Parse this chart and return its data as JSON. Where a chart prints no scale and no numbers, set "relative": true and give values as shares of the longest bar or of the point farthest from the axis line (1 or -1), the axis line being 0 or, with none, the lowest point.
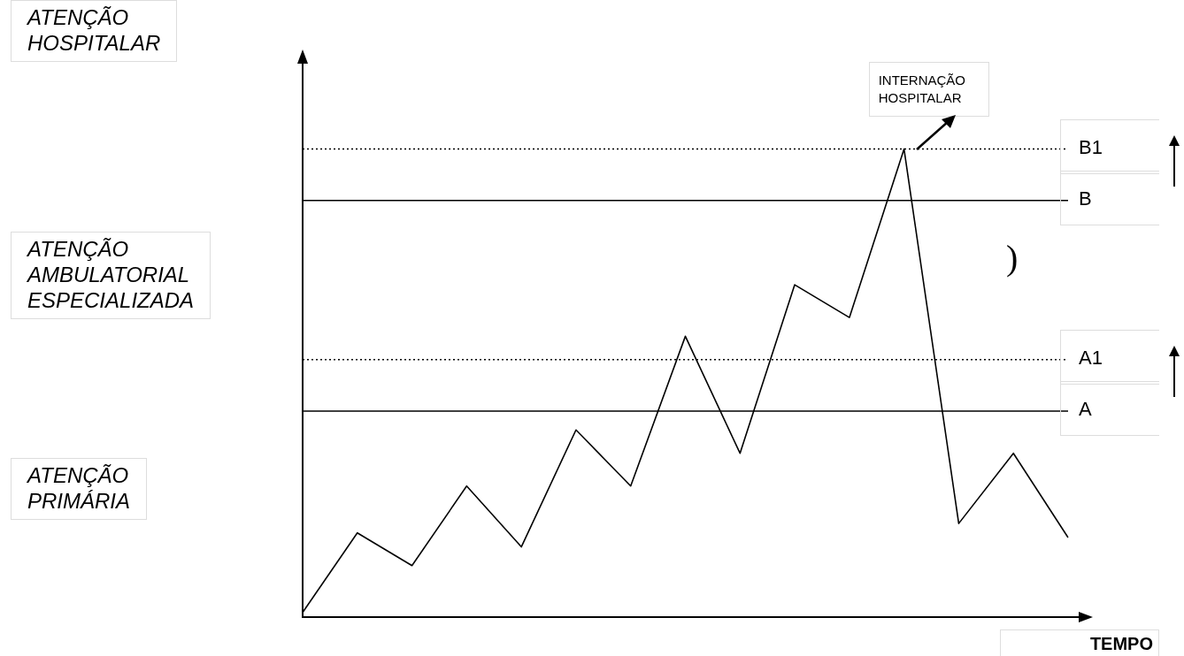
{
  "chart_data": {
    "type": "line",
    "relative": true,
    "xlabel": "TEMPO",
    "categories": [
      null,
      null,
      null,
      null,
      null,
      null,
      null,
      null,
      null,
      null,
      null,
      null,
      null,
      null,
      null
    ],
    "marker": "none",
    "legend": false,
    "grid": false,
    "tick_labels": false,
    "series": [
      {
        "color": "#000000",
        "values": [
          0.01,
          0.18,
          0.11,
          0.28,
          0.15,
          0.4,
          0.28,
          0.6,
          0.35,
          0.71,
          0.64,
          1,
          0.2,
          0.35,
          0.17
        ]
      }
    ],
    "ref_lines": [
      {
        "axis": "y",
        "value": 1,
        "label": "B1",
        "color": "#000000",
        "line_style": "dotted"
      },
      {
        "axis": "y",
        "value": 0.89,
        "label": "B",
        "color": "#000000",
        "line_style": "solid"
      },
      {
        "axis": "y",
        "value": 0.55,
        "label": "A1",
        "color": "#000000",
        "line_style": "dotted"
      },
      {
        "axis": "y",
        "value": 0.44,
        "label": "A",
        "color": "#000000",
        "line_style": "solid"
      }
    ],
    "annotations": [
      "ATENÇÃO\nHOSPITALAR",
      "ATENÇÃO\nAMBULATORIAL\nESPECIALIZADA",
      "ATENÇÃO\nPRIMÁRIA",
      ")",
      "INTERNAÇÃO\nHOSPITALAR"
    ]
  }
}
